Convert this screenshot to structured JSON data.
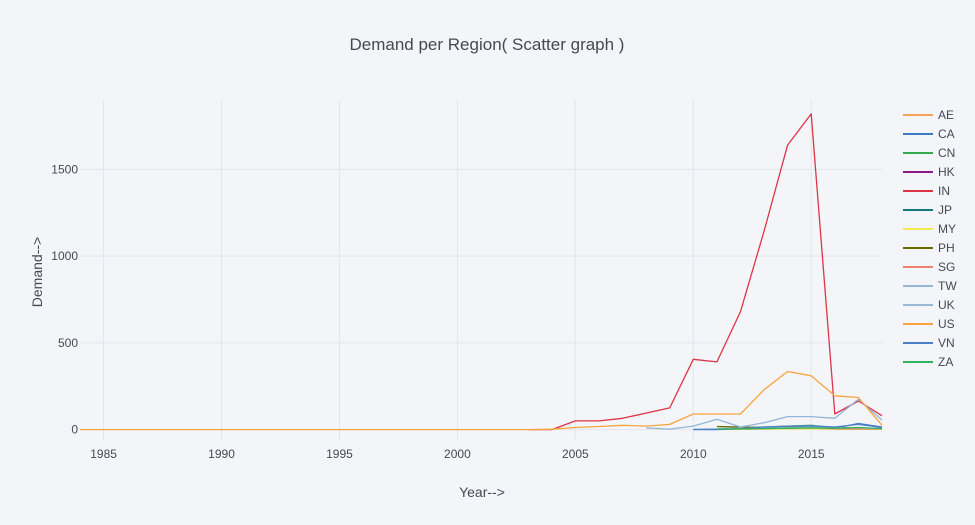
{
  "chart_data": {
    "type": "line",
    "title": "Demand per Region( Scatter graph )",
    "xlabel": "Year-->",
    "ylabel": "Demand-->",
    "xlim": [
      1984,
      2018
    ],
    "ylim": [
      -60,
      1900
    ],
    "x_ticks": [
      1985,
      1990,
      1995,
      2000,
      2005,
      2010,
      2015
    ],
    "y_ticks": [
      0,
      500,
      1000,
      1500
    ],
    "grid": true,
    "legend_position": "right",
    "series": [
      {
        "name": "AE",
        "color": "#f4a259",
        "x": [
          2011,
          2012,
          2013,
          2014,
          2015,
          2016,
          2017,
          2018
        ],
        "y": [
          2,
          3,
          5,
          6,
          8,
          5,
          4,
          2
        ]
      },
      {
        "name": "CA",
        "color": "#3c7ac4",
        "x": [
          2011,
          2012,
          2013,
          2014,
          2015,
          2016,
          2017,
          2018
        ],
        "y": [
          3,
          4,
          8,
          10,
          12,
          8,
          35,
          15
        ]
      },
      {
        "name": "CN",
        "color": "#34a853",
        "x": [
          2011,
          2012,
          2013,
          2014,
          2015,
          2016,
          2017,
          2018
        ],
        "y": [
          5,
          8,
          15,
          20,
          25,
          10,
          8,
          5
        ]
      },
      {
        "name": "HK",
        "color": "#8b1a8b",
        "x": [
          2011,
          2012,
          2013,
          2014,
          2015,
          2016,
          2017,
          2018
        ],
        "y": [
          2,
          3,
          4,
          4,
          5,
          3,
          3,
          2
        ]
      },
      {
        "name": "IN",
        "color": "#dc3545",
        "x": [
          2003,
          2004,
          2005,
          2006,
          2007,
          2008,
          2009,
          2010,
          2011,
          2012,
          2013,
          2014,
          2015,
          2016,
          2017,
          2018
        ],
        "y": [
          0,
          0,
          50,
          50,
          65,
          95,
          125,
          405,
          390,
          680,
          1145,
          1640,
          1820,
          90,
          165,
          80
        ]
      },
      {
        "name": "JP",
        "color": "#127a7a",
        "x": [
          2011,
          2012,
          2013,
          2014,
          2015,
          2016,
          2017,
          2018
        ],
        "y": [
          2,
          3,
          5,
          6,
          6,
          4,
          3,
          2
        ]
      },
      {
        "name": "MY",
        "color": "#f2e94e",
        "x": [
          2011,
          2012,
          2013,
          2014,
          2015,
          2016,
          2017,
          2018
        ],
        "y": [
          1,
          2,
          3,
          4,
          5,
          3,
          2,
          1
        ]
      },
      {
        "name": "PH",
        "color": "#6b6b00",
        "x": [
          2011,
          2012,
          2013,
          2014,
          2015,
          2016,
          2017,
          2018
        ],
        "y": [
          18,
          15,
          12,
          15,
          20,
          10,
          8,
          5
        ]
      },
      {
        "name": "SG",
        "color": "#f08070",
        "x": [
          2011,
          2012,
          2013,
          2014,
          2015,
          2016,
          2017,
          2018
        ],
        "y": [
          2,
          4,
          6,
          8,
          10,
          6,
          4,
          3
        ]
      },
      {
        "name": "TW",
        "color": "#93b5d6",
        "x": [
          2008,
          2009,
          2010,
          2011,
          2012,
          2013,
          2014,
          2015,
          2016,
          2017,
          2018
        ],
        "y": [
          10,
          3,
          20,
          60,
          15,
          40,
          75,
          75,
          65,
          175,
          55
        ]
      },
      {
        "name": "UK",
        "color": "#9ab8d8",
        "x": [
          2010,
          2011,
          2012,
          2013,
          2014,
          2015,
          2016,
          2017,
          2018
        ],
        "y": [
          2,
          5,
          8,
          10,
          12,
          15,
          12,
          10,
          5
        ]
      },
      {
        "name": "US",
        "color": "#f7a440",
        "x": [
          1984,
          1990,
          1995,
          2000,
          2003,
          2004,
          2005,
          2006,
          2007,
          2008,
          2009,
          2010,
          2011,
          2012,
          2013,
          2014,
          2015,
          2016,
          2017,
          2018
        ],
        "y": [
          0,
          0,
          0,
          0,
          0,
          2,
          12,
          18,
          25,
          20,
          30,
          90,
          90,
          90,
          230,
          335,
          310,
          195,
          185,
          25
        ]
      },
      {
        "name": "VN",
        "color": "#4a80c8",
        "x": [
          2010,
          2011,
          2012,
          2013,
          2014,
          2015,
          2016,
          2017,
          2018
        ],
        "y": [
          0,
          0,
          5,
          15,
          20,
          22,
          15,
          30,
          12
        ]
      },
      {
        "name": "ZA",
        "color": "#2eb35a",
        "x": [
          2011,
          2012,
          2013,
          2014,
          2015,
          2016,
          2017,
          2018
        ],
        "y": [
          3,
          4,
          6,
          8,
          10,
          8,
          12,
          6
        ]
      }
    ]
  }
}
